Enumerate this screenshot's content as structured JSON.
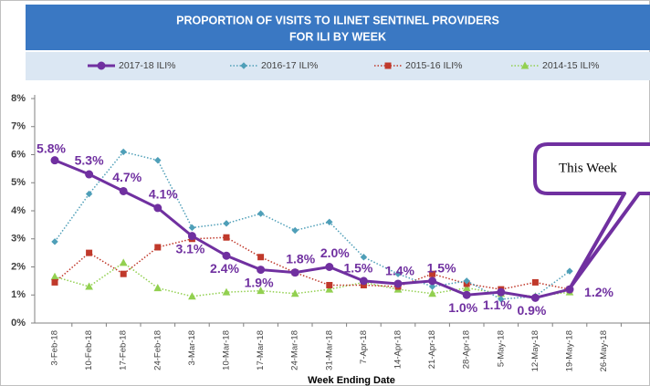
{
  "chart_data": {
    "type": "line",
    "title": [
      "PROPORTION OF VISITS TO ILINET SENTINEL PROVIDERS",
      "FOR ILI BY WEEK"
    ],
    "x_label": "Week Ending Date",
    "annotation": "This Week",
    "categories": [
      "3-Feb-18",
      "10-Feb-18",
      "17-Feb-18",
      "24-Feb-18",
      "3-Mar-18",
      "10-Mar-18",
      "17-Mar-18",
      "24-Mar-18",
      "31-Mar-18",
      "7-Apr-18",
      "14-Apr-18",
      "21-Apr-18",
      "28-Apr-18",
      "5-May-18",
      "12-May-18",
      "19-May-18",
      "26-May-18"
    ],
    "ylim": [
      0,
      8
    ],
    "yticks": [
      {
        "value": 0,
        "label": "0%"
      },
      {
        "value": 1,
        "label": "1%"
      },
      {
        "value": 2,
        "label": "2%"
      },
      {
        "value": 3,
        "label": "3%"
      },
      {
        "value": 4,
        "label": "4%"
      },
      {
        "value": 5,
        "label": "5%"
      },
      {
        "value": 6,
        "label": "6%"
      },
      {
        "value": 7,
        "label": "7%"
      },
      {
        "value": 8,
        "label": "8%"
      }
    ],
    "series": [
      {
        "name": "2017-18 ILI%",
        "color": "#7030a0",
        "marker": "circle",
        "dash": "solid",
        "values": [
          5.8,
          5.3,
          4.7,
          4.1,
          3.1,
          2.4,
          1.9,
          1.8,
          2.0,
          1.5,
          1.4,
          1.5,
          1.0,
          1.1,
          0.9,
          1.2,
          null
        ],
        "value_labels": [
          "5.8%",
          "5.3%",
          "4.7%",
          "4.1%",
          "3.1%",
          "2.4%",
          "1.9%",
          "1.8%",
          "2.0%",
          "1.5%",
          "1.4%",
          "1.5%",
          "1.0%",
          "1.1%",
          "0.9%",
          "1.2%",
          null
        ]
      },
      {
        "name": "2016-17 ILI%",
        "color": "#4f9fb8",
        "marker": "diamond",
        "dash": "dotted",
        "values": [
          2.9,
          4.6,
          6.1,
          5.8,
          3.4,
          3.55,
          3.9,
          3.3,
          3.6,
          2.35,
          1.75,
          1.3,
          1.5,
          0.85,
          0.95,
          1.85,
          null
        ]
      },
      {
        "name": "2015-16 ILI%",
        "color": "#c0392b",
        "marker": "square",
        "dash": "dotted",
        "values": [
          1.45,
          2.5,
          1.75,
          2.7,
          3.0,
          3.05,
          2.35,
          1.8,
          1.35,
          1.35,
          1.3,
          1.75,
          1.4,
          1.2,
          1.45,
          1.2,
          null
        ]
      },
      {
        "name": "2014-15 ILI%",
        "color": "#92d050",
        "marker": "triangle",
        "dash": "dotted",
        "values": [
          1.65,
          1.3,
          2.15,
          1.25,
          0.95,
          1.1,
          1.15,
          1.05,
          1.2,
          1.45,
          1.2,
          1.05,
          1.25,
          1.05,
          0.95,
          1.1,
          null
        ]
      }
    ]
  }
}
